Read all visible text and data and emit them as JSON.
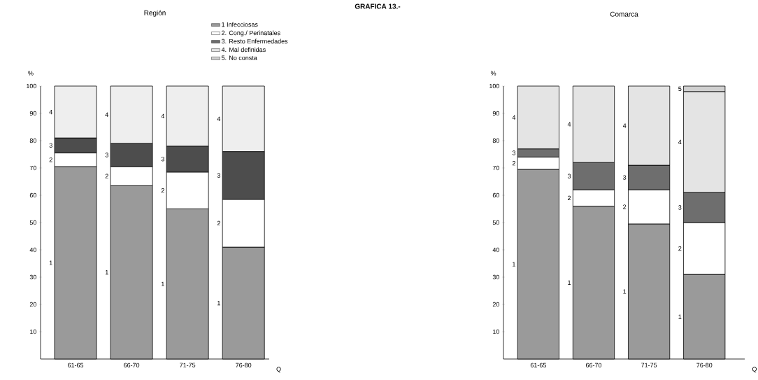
{
  "chart_data": [
    {
      "type": "bar",
      "stacked": true,
      "title": "Región",
      "ylabel": "%",
      "xlabel": "Q",
      "categories": [
        "61-65",
        "66-70",
        "71-75",
        "76-80"
      ],
      "ylim": [
        0,
        100
      ],
      "yticks": [
        10,
        20,
        30,
        40,
        50,
        60,
        70,
        80,
        90,
        100
      ],
      "series": [
        {
          "color": "#9a9a9a",
          "values": [
            70.5,
            63.5,
            55,
            41
          ]
        },
        {
          "color": "#ffffff",
          "values": [
            5,
            7,
            13.5,
            17.5
          ]
        },
        {
          "color": "#4d4d4d",
          "values": [
            5.5,
            8.5,
            9.5,
            17.5
          ]
        },
        {
          "color": "#eeeeee",
          "values": [
            19,
            21,
            22,
            24
          ]
        }
      ],
      "annotations": [
        "GRAFICA 13.-",
        "1",
        "2",
        "3",
        "4",
        "1",
        "2",
        "3",
        "4",
        "1",
        "2",
        "3",
        "4",
        "1",
        "2",
        "3",
        "4"
      ]
    },
    {
      "type": "bar",
      "stacked": true,
      "title": "Comarca",
      "ylabel": "%",
      "xlabel": "Q",
      "legend": "left",
      "categories": [
        "61-65",
        "66-70",
        "71-75",
        "76-80"
      ],
      "ylim": [
        0,
        100
      ],
      "yticks": [
        10,
        20,
        30,
        40,
        50,
        60,
        70,
        80,
        90,
        100
      ],
      "series": [
        {
          "name": "1 Infecciosas",
          "color": "#9a9a9a",
          "values": [
            69.5,
            56,
            49.5,
            31
          ]
        },
        {
          "name": "2. Cong./ Perinatales",
          "color": "#ffffff",
          "values": [
            4.5,
            6,
            12.5,
            19
          ]
        },
        {
          "name": "3. Resto Enfermedades",
          "color": "#6e6e6e",
          "values": [
            3,
            10,
            9,
            11
          ]
        },
        {
          "name": "4. Mal definidas",
          "color": "#e4e4e4",
          "values": [
            23,
            28,
            29,
            37
          ]
        },
        {
          "name": "5. No consta",
          "color": "#d0d0d0",
          "values": [
            null,
            null,
            null,
            2
          ]
        }
      ],
      "annotations": [
        "1",
        "2",
        "3",
        "4",
        "1",
        "2",
        "3",
        "4",
        "1",
        "2",
        "3",
        "4",
        "1",
        "2",
        "3",
        "4",
        "5"
      ]
    }
  ]
}
